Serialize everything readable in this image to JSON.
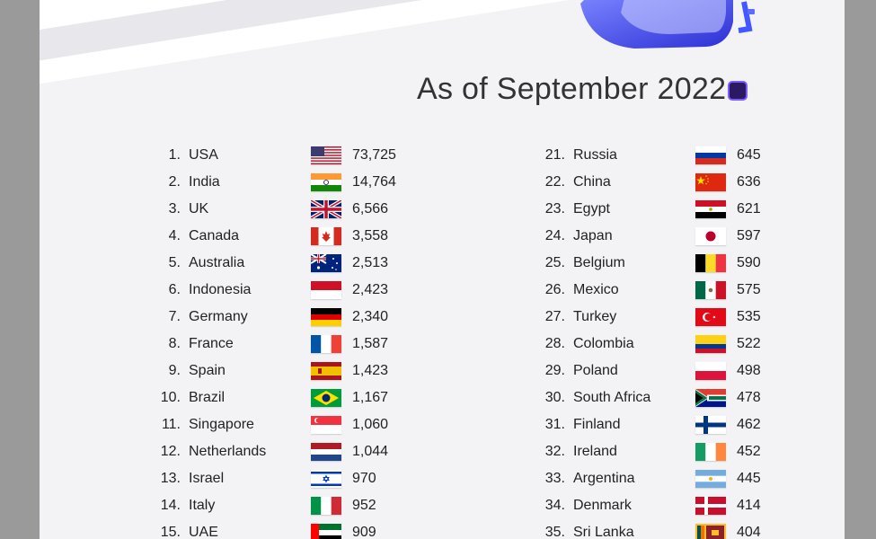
{
  "subtitle": "As of September 2022",
  "left_column": [
    {
      "rank": "1.",
      "country": "USA",
      "value": "73,725",
      "flag": "usa-flag"
    },
    {
      "rank": "2.",
      "country": "India",
      "value": "14,764",
      "flag": "india-flag"
    },
    {
      "rank": "3.",
      "country": "UK",
      "value": "6,566",
      "flag": "uk-flag"
    },
    {
      "rank": "4.",
      "country": "Canada",
      "value": "3,558",
      "flag": "canada-flag"
    },
    {
      "rank": "5.",
      "country": "Australia",
      "value": "2,513",
      "flag": "australia-flag"
    },
    {
      "rank": "6.",
      "country": "Indonesia",
      "value": "2,423",
      "flag": "indonesia-flag"
    },
    {
      "rank": "7.",
      "country": "Germany",
      "value": "2,340",
      "flag": "germany-flag"
    },
    {
      "rank": "8.",
      "country": "France",
      "value": "1,587",
      "flag": "france-flag"
    },
    {
      "rank": "9.",
      "country": "Spain",
      "value": "1,423",
      "flag": "spain-flag"
    },
    {
      "rank": "10.",
      "country": "Brazil",
      "value": "1,167",
      "flag": "brazil-flag"
    },
    {
      "rank": "11.",
      "country": "Singapore",
      "value": "1,060",
      "flag": "singapore-flag"
    },
    {
      "rank": "12.",
      "country": "Netherlands",
      "value": "1,044",
      "flag": "netherlands-flag"
    },
    {
      "rank": "13.",
      "country": "Israel",
      "value": "970",
      "flag": "israel-flag"
    },
    {
      "rank": "14.",
      "country": "Italy",
      "value": "952",
      "flag": "italy-flag"
    },
    {
      "rank": "15.",
      "country": "UAE",
      "value": "909",
      "flag": "uae-flag"
    }
  ],
  "right_column": [
    {
      "rank": "21.",
      "country": "Russia",
      "value": "645",
      "flag": "russia-flag"
    },
    {
      "rank": "22.",
      "country": "China",
      "value": "636",
      "flag": "china-flag"
    },
    {
      "rank": "23.",
      "country": "Egypt",
      "value": "621",
      "flag": "egypt-flag"
    },
    {
      "rank": "24.",
      "country": "Japan",
      "value": "597",
      "flag": "japan-flag"
    },
    {
      "rank": "25.",
      "country": "Belgium",
      "value": "590",
      "flag": "belgium-flag"
    },
    {
      "rank": "26.",
      "country": "Mexico",
      "value": "575",
      "flag": "mexico-flag"
    },
    {
      "rank": "27.",
      "country": "Turkey",
      "value": "535",
      "flag": "turkey-flag"
    },
    {
      "rank": "28.",
      "country": "Colombia",
      "value": "522",
      "flag": "colombia-flag"
    },
    {
      "rank": "29.",
      "country": "Poland",
      "value": "498",
      "flag": "poland-flag"
    },
    {
      "rank": "30.",
      "country": "South Africa",
      "value": "478",
      "flag": "south-africa-flag"
    },
    {
      "rank": "31.",
      "country": "Finland",
      "value": "462",
      "flag": "finland-flag"
    },
    {
      "rank": "32.",
      "country": "Ireland",
      "value": "452",
      "flag": "ireland-flag"
    },
    {
      "rank": "33.",
      "country": "Argentina",
      "value": "445",
      "flag": "argentina-flag"
    },
    {
      "rank": "34.",
      "country": "Denmark",
      "value": "414",
      "flag": "denmark-flag"
    },
    {
      "rank": "35.",
      "country": "Sri Lanka",
      "value": "404",
      "flag": "sri-lanka-flag"
    }
  ],
  "colors": {
    "accent": "#2b1a63",
    "accent_light": "#7a5cff",
    "text": "#222222"
  }
}
